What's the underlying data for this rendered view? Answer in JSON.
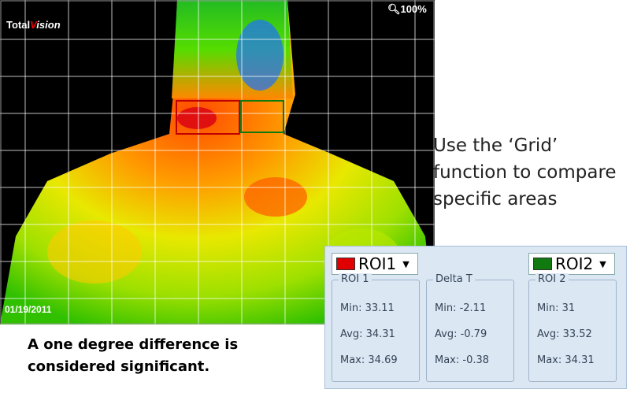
{
  "image": {
    "brand": {
      "first": "Total",
      "second": "Vision"
    },
    "zoom": "100%",
    "date": "01/19/2011"
  },
  "caption": [
    "Use the ‘Grid’",
    "function to compare",
    "specific areas"
  ],
  "note": [
    "A one degree difference is",
    "considered significant."
  ],
  "panel": {
    "selectors": [
      {
        "label": "ROI1",
        "color": "#e00000"
      },
      {
        "label": "ROI2",
        "color": "#107a10"
      }
    ],
    "groups": [
      {
        "title": "ROI 1",
        "rows": [
          "Min: 33.11",
          "Avg: 34.31",
          "Max: 34.69"
        ]
      },
      {
        "title": "Delta T",
        "rows": [
          "Min: -2.11",
          "Avg: -0.79",
          "Max: -0.38"
        ]
      },
      {
        "title": "ROI 2",
        "rows": [
          "Min: 31",
          "Avg: 33.52",
          "Max: 34.31"
        ]
      }
    ]
  }
}
